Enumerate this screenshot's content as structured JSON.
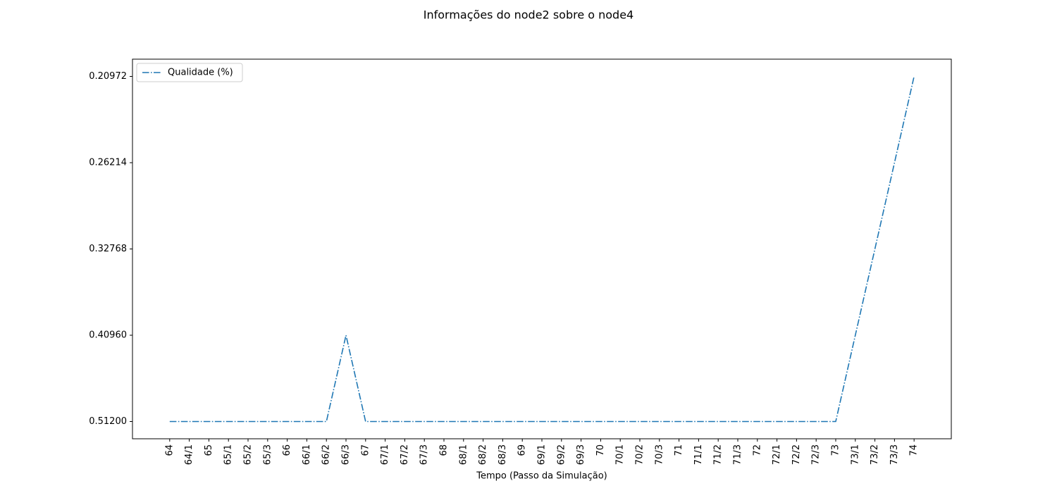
{
  "chart_data": {
    "type": "line",
    "title": "Informações do node2 sobre o node4",
    "xlabel": "Tempo (Passo da Simulação)",
    "categories": [
      "64",
      "64/1",
      "65",
      "65/1",
      "65/2",
      "65/3",
      "66",
      "66/1",
      "66/2",
      "66/3",
      "67",
      "67/1",
      "67/2",
      "67/3",
      "68",
      "68/1",
      "68/2",
      "68/3",
      "69",
      "69/1",
      "69/2",
      "69/3",
      "70",
      "70/1",
      "70/2",
      "70/3",
      "71",
      "71/1",
      "71/2",
      "71/3",
      "72",
      "72/1",
      "72/2",
      "72/3",
      "73",
      "73/1",
      "73/2",
      "73/3",
      "74"
    ],
    "series": [
      {
        "name": "Qualidade (%)",
        "color": "#1f77b4",
        "values": [
          0.512,
          0.512,
          0.512,
          0.512,
          0.512,
          0.512,
          0.512,
          0.512,
          0.512,
          0.4096,
          0.512,
          0.512,
          0.512,
          0.512,
          0.512,
          0.512,
          0.512,
          0.512,
          0.512,
          0.512,
          0.512,
          0.512,
          0.512,
          0.512,
          0.512,
          0.512,
          0.512,
          0.512,
          0.512,
          0.512,
          0.512,
          0.512,
          0.512,
          0.512,
          0.512,
          0.4096,
          0.32768,
          0.26214,
          0.20972
        ]
      }
    ],
    "yticks": [
      {
        "value": 0.512,
        "label": "0.51200"
      },
      {
        "value": 0.4096,
        "label": "0.40960"
      },
      {
        "value": 0.32768,
        "label": "0.32768"
      },
      {
        "value": 0.26214,
        "label": "0.26214"
      },
      {
        "value": 0.20972,
        "label": "0.20972"
      }
    ],
    "legend": "upper left"
  }
}
